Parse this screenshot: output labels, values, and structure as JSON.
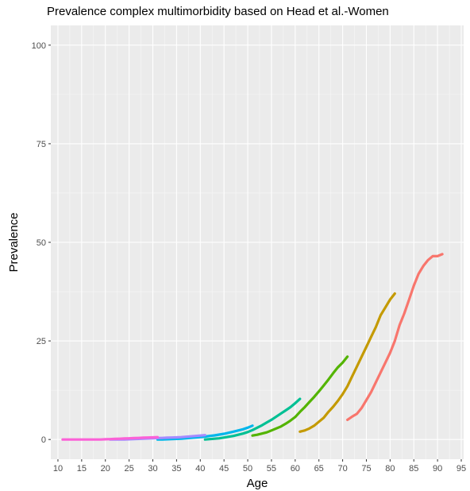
{
  "chart_data": {
    "type": "line",
    "title": "Prevalence complex multimorbidity based on Head et al.-Women",
    "xlabel": "Age",
    "ylabel": "Prevalence",
    "xlim": [
      8.5,
      95.5
    ],
    "ylim": [
      -5,
      105
    ],
    "x_ticks": [
      10,
      15,
      20,
      25,
      30,
      35,
      40,
      45,
      50,
      55,
      60,
      65,
      70,
      75,
      80,
      85,
      90,
      95
    ],
    "y_ticks": [
      0,
      25,
      50,
      75,
      100
    ],
    "grid": true,
    "legend": "none",
    "series": [
      {
        "color": "#F8766D",
        "x": [
          71,
          72,
          73,
          74,
          75,
          76,
          77,
          78,
          79,
          80,
          81,
          82,
          83,
          84,
          85,
          86,
          87,
          88,
          89,
          90,
          91
        ],
        "y": [
          5,
          5.8,
          6.5,
          8,
          10,
          12,
          14.5,
          17,
          19.5,
          22,
          25,
          29,
          32,
          35.5,
          39,
          42,
          44,
          45.5,
          46.5,
          46.5,
          47
        ]
      },
      {
        "color": "#C49A00",
        "x": [
          61,
          62,
          63,
          64,
          65,
          66,
          67,
          68,
          69,
          70,
          71,
          72,
          73,
          74,
          75,
          76,
          77,
          78,
          79,
          80,
          81
        ],
        "y": [
          2,
          2.3,
          2.8,
          3.5,
          4.5,
          5.5,
          7,
          8.3,
          9.8,
          11.5,
          13.5,
          16,
          18.5,
          21,
          23.5,
          26,
          28.5,
          31.5,
          33.5,
          35.5,
          37
        ]
      },
      {
        "color": "#53B400",
        "x": [
          51,
          52,
          53,
          54,
          55,
          56,
          57,
          58,
          59,
          60,
          61,
          62,
          63,
          64,
          65,
          66,
          67,
          68,
          69,
          70,
          71
        ],
        "y": [
          1,
          1.2,
          1.5,
          1.8,
          2.3,
          2.8,
          3.3,
          4,
          4.8,
          5.7,
          7,
          8.2,
          9.5,
          10.8,
          12.2,
          13.7,
          15.2,
          16.8,
          18.3,
          19.5,
          21
        ]
      },
      {
        "color": "#00C094",
        "x": [
          41,
          42,
          43,
          44,
          45,
          46,
          47,
          48,
          49,
          50,
          51,
          52,
          53,
          54,
          55,
          56,
          57,
          58,
          59,
          60,
          61
        ],
        "y": [
          0,
          0.1,
          0.2,
          0.3,
          0.5,
          0.7,
          0.9,
          1.2,
          1.5,
          1.9,
          2.4,
          3,
          3.6,
          4.3,
          5,
          5.8,
          6.6,
          7.4,
          8.2,
          9.2,
          10.3
        ]
      },
      {
        "color": "#00B6EB",
        "x": [
          31,
          32,
          33,
          34,
          35,
          36,
          37,
          38,
          39,
          40,
          41,
          42,
          43,
          44,
          45,
          46,
          47,
          48,
          49,
          50,
          51
        ],
        "y": [
          0,
          0,
          0.05,
          0.1,
          0.15,
          0.2,
          0.3,
          0.4,
          0.5,
          0.6,
          0.75,
          0.9,
          1.05,
          1.25,
          1.45,
          1.7,
          2,
          2.3,
          2.6,
          3,
          3.5
        ]
      },
      {
        "color": "#A58AFF",
        "x": [
          21,
          22,
          23,
          24,
          25,
          26,
          27,
          28,
          29,
          30,
          31,
          32,
          33,
          34,
          35,
          36,
          37,
          38,
          39,
          40,
          41
        ],
        "y": [
          0,
          0,
          0,
          0,
          0.05,
          0.1,
          0.15,
          0.2,
          0.25,
          0.3,
          0.35,
          0.4,
          0.45,
          0.5,
          0.55,
          0.6,
          0.7,
          0.8,
          0.9,
          1,
          1.1
        ]
      },
      {
        "color": "#FB61D7",
        "x": [
          11,
          12,
          13,
          14,
          15,
          16,
          17,
          18,
          19,
          20,
          21,
          22,
          23,
          24,
          25,
          26,
          27,
          28,
          29,
          30,
          31
        ],
        "y": [
          0,
          0,
          0,
          0,
          0,
          0,
          0,
          0,
          0,
          0.05,
          0.1,
          0.15,
          0.2,
          0.25,
          0.3,
          0.35,
          0.4,
          0.45,
          0.5,
          0.55,
          0.6
        ]
      }
    ]
  }
}
